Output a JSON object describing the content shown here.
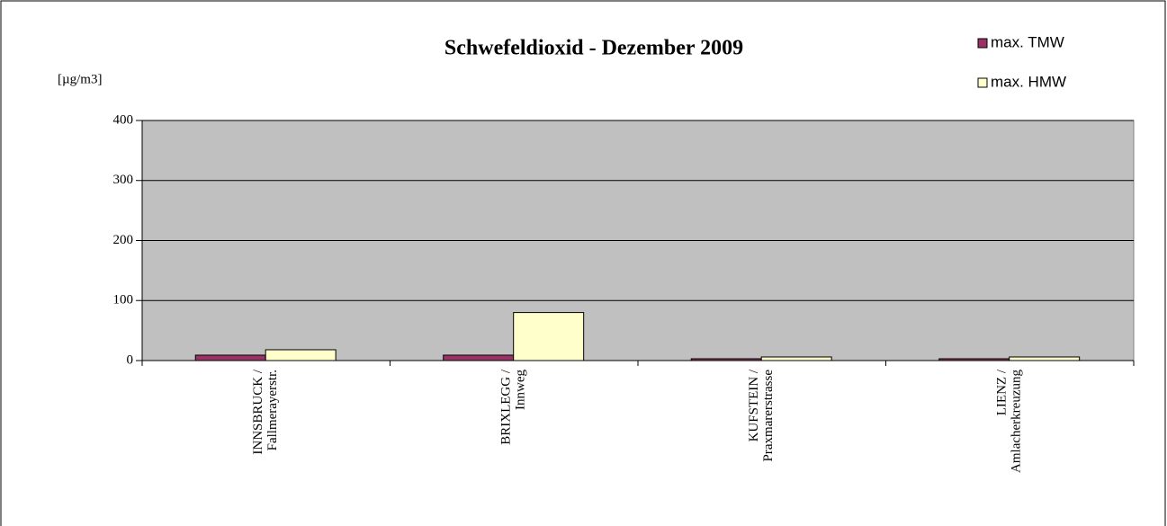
{
  "chart_data": {
    "type": "bar",
    "title": "Schwefeldioxid - Dezember 2009",
    "y_label": "[µg/m3]",
    "categories": [
      [
        "INNSBRUCK /",
        "Fallmerayerstr."
      ],
      [
        "BRIXLEGG /",
        "Innweg"
      ],
      [
        "KUFSTEIN /",
        "Praxmarerstrasse"
      ],
      [
        "LIENZ /",
        "Amlacherkreuzung"
      ]
    ],
    "series": [
      {
        "name": "max. TMW",
        "color": "#993366",
        "values": [
          9,
          9,
          3,
          3
        ]
      },
      {
        "name": "max. HMW",
        "color": "#ffffcc",
        "values": [
          18,
          80,
          6,
          6
        ]
      }
    ],
    "ylim": [
      0,
      400
    ],
    "yticks": [
      0,
      100,
      200,
      300,
      400
    ],
    "grid": true,
    "legend": "top-right",
    "plot_background": "#c0c0c0"
  }
}
